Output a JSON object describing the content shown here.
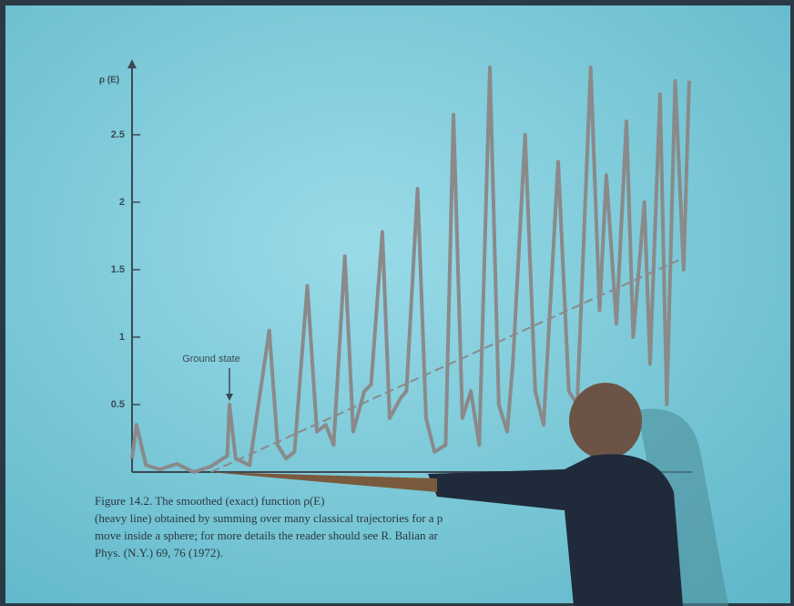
{
  "chart_data": {
    "type": "line",
    "y_label": "ρ (E)",
    "annotation": "Ground state",
    "ylim": [
      0,
      3.06
    ],
    "yticks": [
      0.5,
      1,
      1.5,
      2,
      2.5
    ],
    "xlim": [
      0,
      100
    ],
    "series": [
      {
        "color": "#8a8a8a",
        "x": [
          0,
          0.8,
          2.5,
          5,
          8,
          11,
          14,
          17,
          17.4,
          18.5,
          21,
          24.5,
          26,
          27.5,
          29,
          31.3,
          33,
          34.6,
          36,
          38,
          39.5,
          41.5,
          42.7,
          44.7,
          46,
          48,
          49,
          51,
          52.5,
          54,
          56,
          57.4,
          59,
          60.5,
          62,
          63.9,
          65.5,
          67,
          68,
          70.2,
          72,
          73.5,
          76.1,
          78,
          79.5,
          81.9,
          83.5,
          84.7,
          86.5,
          88.3,
          89.5,
          91.5,
          92.5,
          94.3,
          95.5,
          97,
          98.5,
          99.5
        ],
        "values": [
          0.1,
          0.35,
          0.05,
          0.02,
          0.06,
          0,
          0.04,
          0.12,
          0.5,
          0.1,
          0.05,
          1.05,
          0.2,
          0.1,
          0.15,
          1.38,
          0.3,
          0.35,
          0.2,
          1.6,
          0.3,
          0.6,
          0.65,
          1.78,
          0.4,
          0.55,
          0.6,
          2.1,
          0.4,
          0.15,
          0.2,
          2.65,
          0.4,
          0.6,
          0.2,
          3.0,
          0.5,
          0.3,
          0.8,
          2.5,
          0.6,
          0.35,
          2.3,
          0.6,
          0.5,
          3.0,
          1.2,
          2.2,
          1.1,
          2.6,
          1.0,
          2.0,
          0.8,
          2.8,
          0.5,
          2.9,
          1.5,
          2.9
        ]
      },
      {
        "color": "#8a8a8a",
        "dashed": true,
        "x": [
          14.1,
          97.6
        ],
        "values": [
          0,
          1.57
        ]
      }
    ]
  },
  "caption": [
    "Figure 14.2.  The smoothed (exact) function ρ(E)",
    "(heavy line) obtained by summing over many classical trajectories for a p",
    "move inside a sphere; for more details the reader should see R. Balian ar",
    "Phys. (N.Y.) 69, 76 (1972)."
  ]
}
